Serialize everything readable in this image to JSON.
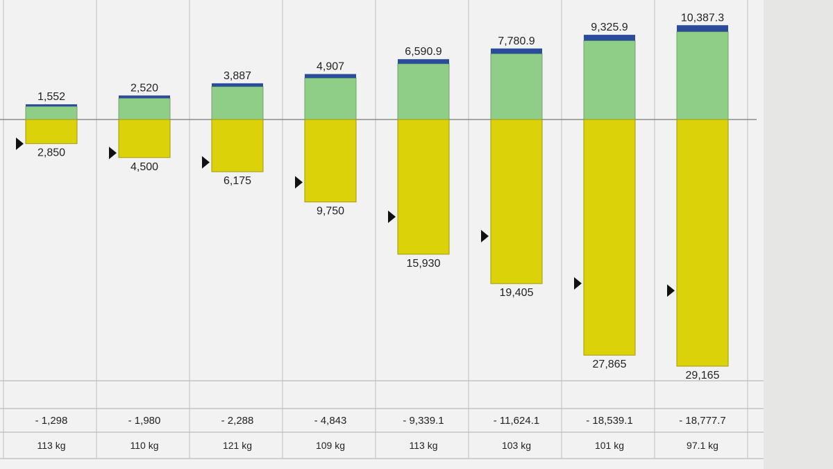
{
  "chart_data": {
    "type": "bar",
    "description_series": [
      {
        "name": "",
        "role": "top",
        "color": "#8ece86",
        "values": [
          1552,
          2520,
          3887,
          4907,
          6590.9,
          7780.9,
          9325.9,
          10387.3
        ]
      },
      {
        "name": "",
        "role": "bottom",
        "color": "#dcd20a",
        "values": [
          2850,
          4500,
          6175,
          9750,
          15930,
          19405,
          27865,
          29165
        ]
      }
    ],
    "top_labels": [
      "1,552",
      "2,520",
      "3,887",
      "4,907",
      "6,590.9",
      "7,780.9",
      "9,325.9",
      "10,387.3"
    ],
    "bottom_labels": [
      "2,850",
      "4,500",
      "6,175",
      "9,750",
      "15,930",
      "19,405",
      "27,865",
      "29,165"
    ],
    "difference_labels": [
      "- 1,298",
      "- 1,980",
      "- 2,288",
      "- 4,843",
      "- 9,339.1",
      "- 11,624.1",
      "- 18,539.1",
      "- 18,777.7"
    ],
    "weight_labels": [
      "113 kg",
      "110 kg",
      "121 kg",
      "109 kg",
      "113 kg",
      "103 kg",
      "101 kg",
      "97.1 kg"
    ],
    "colors": {
      "top_bar": "#8ece86",
      "bottom_bar": "#dcd20a",
      "cap": "#2b4c9a",
      "marker": "#111111",
      "baseline": "#8a8a8a"
    }
  }
}
